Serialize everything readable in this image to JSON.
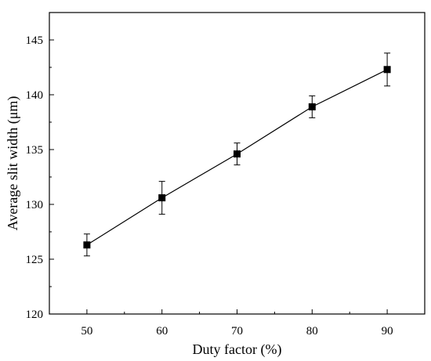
{
  "chart_data": {
    "type": "line",
    "title": "",
    "xlabel": "Duty factor (%)",
    "ylabel": "Average slit width (μm)",
    "xlim": [
      45,
      95
    ],
    "ylim": [
      120,
      147.5
    ],
    "x_ticks": [
      50,
      60,
      70,
      80,
      90
    ],
    "y_ticks": [
      120,
      125,
      130,
      135,
      140,
      145
    ],
    "grid": false,
    "legend": "none",
    "series": [
      {
        "marker": "square",
        "color": "#000000",
        "x": [
          50,
          60,
          70,
          80,
          90
        ],
        "y": [
          126.3,
          130.6,
          134.6,
          138.9,
          142.3
        ],
        "error": [
          1.0,
          1.5,
          1.0,
          1.0,
          1.5
        ]
      }
    ]
  }
}
